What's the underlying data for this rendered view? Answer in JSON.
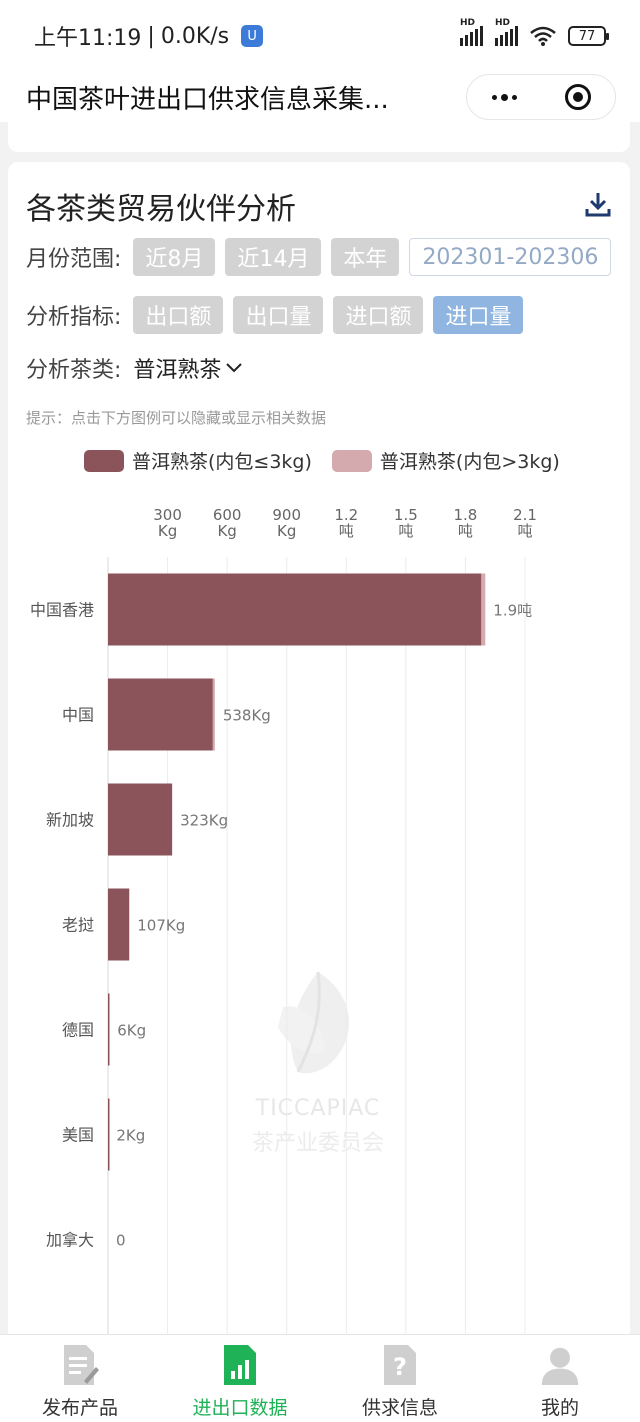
{
  "status_bar": {
    "time": "上午11:19",
    "network_speed": "0.0K/s",
    "vpn_badge": "U",
    "battery": "77"
  },
  "nav": {
    "title": "中国茶叶进出口供求信息采集..."
  },
  "card": {
    "title": "各茶类贸易伙伴分析",
    "month_range_label": "月份范围:",
    "month_options": [
      "近8月",
      "近14月",
      "本年"
    ],
    "month_selected_range": "202301-202306",
    "metric_label": "分析指标:",
    "metric_options": [
      "出口额",
      "出口量",
      "进口额",
      "进口量"
    ],
    "metric_active": "进口量",
    "tea_label": "分析茶类:",
    "tea_selected": "普洱熟茶",
    "hint": "提示：点击下方图例可以隐藏或显示相关数据",
    "colors": {
      "series1": "#8b545b",
      "series2": "#d4aaae",
      "chip_active": "#8fb5e0"
    }
  },
  "chart_data": {
    "type": "bar",
    "orientation": "horizontal",
    "stacked": true,
    "categories": [
      "中国香港",
      "中国",
      "新加坡",
      "老挝",
      "德国",
      "美国",
      "加拿大"
    ],
    "series": [
      {
        "name": "普洱熟茶(内包≤3kg)",
        "values": [
          1880,
          528,
          323,
          107,
          6,
          2,
          0
        ]
      },
      {
        "name": "普洱熟茶(内包>3kg)",
        "values": [
          20,
          10,
          0,
          0,
          0,
          0,
          0
        ]
      }
    ],
    "total_labels": [
      "1.9吨",
      "538Kg",
      "323Kg",
      "107Kg",
      "6Kg",
      "2Kg",
      "0"
    ],
    "x_ticks": [
      {
        "value": 300,
        "line1": "300",
        "line2": "Kg"
      },
      {
        "value": 600,
        "line1": "600",
        "line2": "Kg"
      },
      {
        "value": 900,
        "line1": "900",
        "line2": "Kg"
      },
      {
        "value": 1200,
        "line1": "1.2",
        "line2": "吨"
      },
      {
        "value": 1500,
        "line1": "1.5",
        "line2": "吨"
      },
      {
        "value": 1800,
        "line1": "1.8",
        "line2": "吨"
      },
      {
        "value": 2100,
        "line1": "2.1",
        "line2": "吨"
      }
    ],
    "xlim": [
      0,
      2100
    ],
    "grid": true,
    "legend_position": "top"
  },
  "watermark": {
    "line1": "TICCAPIAC",
    "line2": "茶产业委员会"
  },
  "tabbar": {
    "items": [
      {
        "label": "发布产品",
        "icon": "edit-document-icon"
      },
      {
        "label": "进出口数据",
        "icon": "data-chart-icon"
      },
      {
        "label": "供求信息",
        "icon": "question-doc-icon"
      },
      {
        "label": "我的",
        "icon": "user-icon"
      }
    ],
    "active_index": 1
  }
}
